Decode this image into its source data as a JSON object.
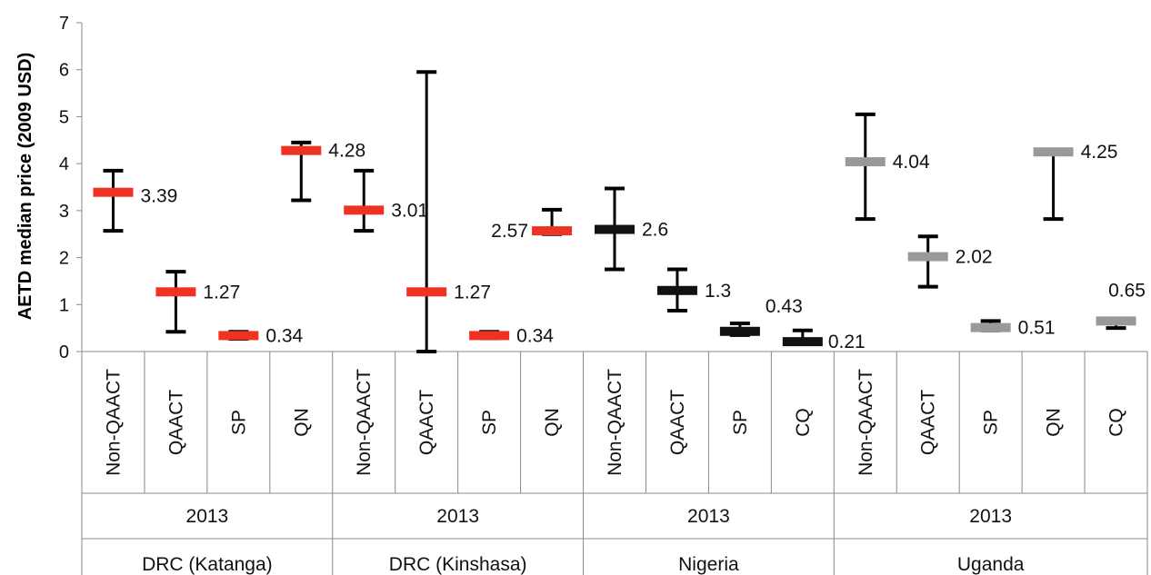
{
  "chart_data": {
    "type": "error-bar",
    "ylabel": "AETD median price (2009 USD)",
    "ylim": [
      0,
      7
    ],
    "yticks": [
      "0",
      "1",
      "2",
      "3",
      "4",
      "5",
      "6",
      "7"
    ],
    "colors": {
      "red": "#ee3322",
      "black": "#111111",
      "gray": "#999999"
    },
    "groups": [
      {
        "country": "DRC (Katanga)",
        "year": "2013",
        "color": "red",
        "items": [
          {
            "category": "Non-QAACT",
            "median": 3.39,
            "min": 2.57,
            "max": 3.85,
            "label": "3.39"
          },
          {
            "category": "QAACT",
            "median": 1.27,
            "min": 0.42,
            "max": 1.7,
            "label": "1.27"
          },
          {
            "category": "SP",
            "median": 0.34,
            "min": 0.27,
            "max": 0.42,
            "label": "0.34"
          },
          {
            "category": "QN",
            "median": 4.28,
            "min": 3.22,
            "max": 4.45,
            "label": "4.28"
          }
        ]
      },
      {
        "country": "DRC (Kinshasa)",
        "year": "2013",
        "color": "red",
        "items": [
          {
            "category": "Non-QAACT",
            "median": 3.01,
            "min": 2.57,
            "max": 3.85,
            "label": "3.01"
          },
          {
            "category": "QAACT",
            "median": 1.27,
            "min": 0.0,
            "max": 5.95,
            "label": "1.27"
          },
          {
            "category": "SP",
            "median": 0.34,
            "min": 0.28,
            "max": 0.42,
            "label": "0.34"
          },
          {
            "category": "QN",
            "median": 2.57,
            "min": 2.5,
            "max": 3.02,
            "label": "2.57"
          }
        ]
      },
      {
        "country": "Nigeria",
        "year": "2013",
        "color": "black",
        "items": [
          {
            "category": "Non-QAACT",
            "median": 2.6,
            "min": 1.75,
            "max": 3.47,
            "label": "2.6"
          },
          {
            "category": "QAACT",
            "median": 1.3,
            "min": 0.87,
            "max": 1.75,
            "label": "1.3"
          },
          {
            "category": "SP",
            "median": 0.43,
            "min": 0.35,
            "max": 0.6,
            "label": "0.43"
          },
          {
            "category": "CQ",
            "median": 0.21,
            "min": 0.17,
            "max": 0.45,
            "label": "0.21"
          }
        ]
      },
      {
        "country": "Uganda",
        "year": "2013",
        "color": "gray",
        "items": [
          {
            "category": "Non-QAACT",
            "median": 4.04,
            "min": 2.82,
            "max": 5.05,
            "label": "4.04"
          },
          {
            "category": "QAACT",
            "median": 2.02,
            "min": 1.38,
            "max": 2.45,
            "label": "2.02"
          },
          {
            "category": "SP",
            "median": 0.51,
            "min": 0.45,
            "max": 0.65,
            "label": "0.51"
          },
          {
            "category": "QN",
            "median": 4.25,
            "min": 2.82,
            "max": 4.25,
            "label": "4.25"
          },
          {
            "category": "CQ",
            "median": 0.65,
            "min": 0.5,
            "max": 0.65,
            "label": "0.65"
          }
        ]
      }
    ]
  }
}
